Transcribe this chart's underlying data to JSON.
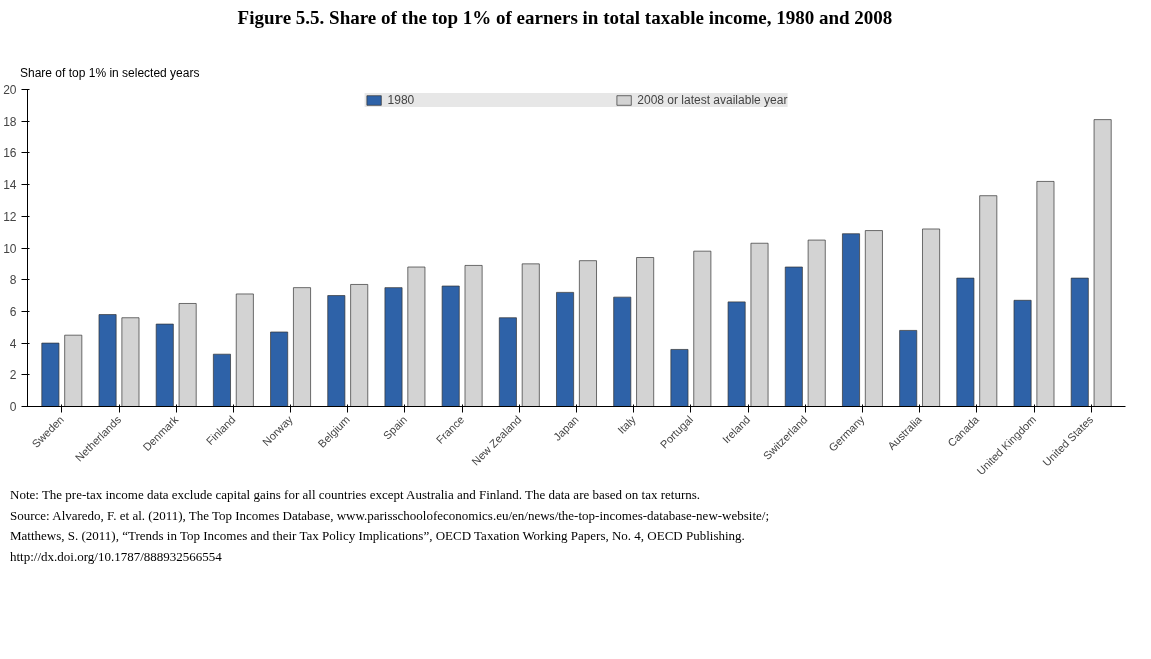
{
  "chart_data": {
    "type": "bar",
    "title": "Figure 5.5. Share of the top 1% of earners in total taxable income, 1980 and 2008",
    "ylabel": "Share of top 1% in selected years",
    "categories": [
      "Sweden",
      "Netherlands",
      "Denmark",
      "Finland",
      "Norway",
      "Belgium",
      "Spain",
      "France",
      "New Zealand",
      "Japan",
      "Italy",
      "Portugal",
      "Ireland",
      "Switzerland",
      "Germany",
      "Australia",
      "Canada",
      "United Kingdom",
      "United States"
    ],
    "series": [
      {
        "name": "1980",
        "color": "#2e62a8",
        "values": [
          4.0,
          5.8,
          5.2,
          3.3,
          4.7,
          7.0,
          7.5,
          7.6,
          5.6,
          7.2,
          6.9,
          3.6,
          6.6,
          8.8,
          10.9,
          4.8,
          8.1,
          6.7,
          8.1
        ]
      },
      {
        "name": "2008 or latest available year",
        "color": "#d3d3d3",
        "values": [
          4.5,
          5.6,
          6.5,
          7.1,
          7.5,
          7.7,
          8.8,
          8.9,
          9.0,
          9.2,
          9.4,
          9.8,
          10.3,
          10.5,
          11.1,
          11.2,
          13.3,
          14.2,
          18.1
        ]
      }
    ],
    "ylim": [
      0,
      20
    ],
    "yticks": [
      0,
      2,
      4,
      6,
      8,
      10,
      12,
      14,
      16,
      18,
      20
    ],
    "grid": false,
    "legend": "top",
    "annotations": [
      "Note: The pre-tax income data exclude capital gains for all countries except Australia and Finland. The data are based on tax returns.",
      "Source: Alvaredo, F. et al. (2011), The Top Incomes Database, www.parisschoolofeconomics.eu/en/news/the-top-incomes-database-new-website/;",
      "Matthews, S. (2011), “Trends in Top Incomes and their Tax Policy Implications”, OECD Taxation Working Papers, No. 4, OECD Publishing.",
      "http://dx.doi.org/10.1787/888932566554"
    ]
  }
}
